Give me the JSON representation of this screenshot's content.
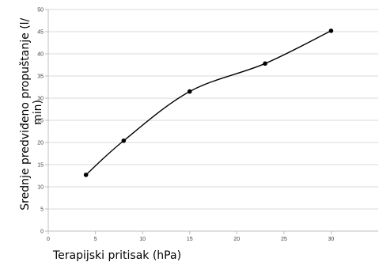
{
  "chart_data": {
    "type": "line",
    "smooth": true,
    "xlabel": "Terapijski pritisak (hPa)",
    "ylabel": "Srednje predviđeno propuštanje (l/min)",
    "xlim": [
      0,
      35
    ],
    "ylim": [
      0,
      50
    ],
    "xticks": [
      0,
      5,
      10,
      15,
      20,
      25,
      30
    ],
    "yticks": [
      0,
      5,
      10,
      15,
      20,
      25,
      30,
      35,
      40,
      45,
      50
    ],
    "grid": {
      "horizontal": true,
      "vertical": false
    },
    "series": [
      {
        "color": "#000000",
        "marker": "circle",
        "x": [
          4,
          8,
          15,
          23,
          30
        ],
        "y": [
          12.7,
          20.4,
          31.5,
          37.8,
          45.2
        ]
      }
    ]
  }
}
